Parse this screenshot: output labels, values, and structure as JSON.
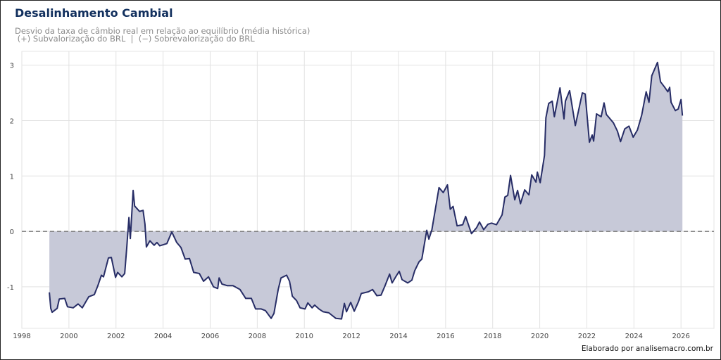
{
  "title": "Desalinhamento Cambial",
  "subtitle_line1": "Desvio da taxa de câmbio real em relação ao equilíbrio (média histórica)",
  "subtitle_line2": " (+) Subvalorização do BRL  |  (−) Sobrevalorização do BRL",
  "footer": "Elaborado por analisemacro.com.br",
  "colors": {
    "line": "#272d66",
    "fill": "#c7c9d8",
    "zero_line": "#777777",
    "title": "#12305e"
  },
  "chart_data": {
    "type": "area",
    "title": "Desalinhamento Cambial",
    "xlabel": "",
    "ylabel": "",
    "xlim": [
      1998,
      2027.4
    ],
    "ylim": [
      -1.75,
      3.25
    ],
    "x_ticks": [
      1998,
      2000,
      2002,
      2004,
      2006,
      2008,
      2010,
      2012,
      2014,
      2016,
      2018,
      2020,
      2022,
      2024,
      2026
    ],
    "y_ticks": [
      -1,
      0,
      1,
      2,
      3
    ],
    "grid": true,
    "reference_line": {
      "y": 0,
      "style": "dashed"
    },
    "points": [
      [
        1999.17,
        -1.1
      ],
      [
        1999.23,
        -1.39
      ],
      [
        1999.29,
        -1.46
      ],
      [
        1999.5,
        -1.39
      ],
      [
        1999.59,
        -1.22
      ],
      [
        1999.82,
        -1.21
      ],
      [
        1999.94,
        -1.36
      ],
      [
        2000.18,
        -1.38
      ],
      [
        2000.39,
        -1.31
      ],
      [
        2000.57,
        -1.38
      ],
      [
        2000.84,
        -1.18
      ],
      [
        2001.08,
        -1.14
      ],
      [
        2001.23,
        -0.98
      ],
      [
        2001.38,
        -0.79
      ],
      [
        2001.47,
        -0.82
      ],
      [
        2001.68,
        -0.48
      ],
      [
        2001.8,
        -0.47
      ],
      [
        2001.98,
        -0.83
      ],
      [
        2002.07,
        -0.74
      ],
      [
        2002.25,
        -0.82
      ],
      [
        2002.37,
        -0.76
      ],
      [
        2002.46,
        -0.28
      ],
      [
        2002.55,
        0.25
      ],
      [
        2002.61,
        -0.13
      ],
      [
        2002.73,
        0.74
      ],
      [
        2002.79,
        0.46
      ],
      [
        2003.0,
        0.36
      ],
      [
        2003.15,
        0.38
      ],
      [
        2003.23,
        0.13
      ],
      [
        2003.29,
        -0.28
      ],
      [
        2003.44,
        -0.17
      ],
      [
        2003.62,
        -0.25
      ],
      [
        2003.74,
        -0.2
      ],
      [
        2003.86,
        -0.26
      ],
      [
        2004.16,
        -0.22
      ],
      [
        2004.37,
        -0.01
      ],
      [
        2004.58,
        -0.2
      ],
      [
        2004.76,
        -0.29
      ],
      [
        2004.94,
        -0.5
      ],
      [
        2005.12,
        -0.49
      ],
      [
        2005.3,
        -0.74
      ],
      [
        2005.54,
        -0.76
      ],
      [
        2005.72,
        -0.9
      ],
      [
        2005.93,
        -0.82
      ],
      [
        2006.14,
        -1.0
      ],
      [
        2006.32,
        -1.03
      ],
      [
        2006.38,
        -0.84
      ],
      [
        2006.5,
        -0.95
      ],
      [
        2006.73,
        -0.98
      ],
      [
        2006.97,
        -0.98
      ],
      [
        2007.27,
        -1.05
      ],
      [
        2007.51,
        -1.21
      ],
      [
        2007.75,
        -1.21
      ],
      [
        2007.93,
        -1.4
      ],
      [
        2008.17,
        -1.4
      ],
      [
        2008.35,
        -1.43
      ],
      [
        2008.59,
        -1.57
      ],
      [
        2008.71,
        -1.48
      ],
      [
        2008.89,
        -1.05
      ],
      [
        2009.01,
        -0.84
      ],
      [
        2009.25,
        -0.79
      ],
      [
        2009.37,
        -0.9
      ],
      [
        2009.49,
        -1.17
      ],
      [
        2009.67,
        -1.25
      ],
      [
        2009.82,
        -1.38
      ],
      [
        2010.03,
        -1.4
      ],
      [
        2010.15,
        -1.29
      ],
      [
        2010.33,
        -1.38
      ],
      [
        2010.44,
        -1.33
      ],
      [
        2010.62,
        -1.4
      ],
      [
        2010.8,
        -1.45
      ],
      [
        2011.04,
        -1.47
      ],
      [
        2011.34,
        -1.57
      ],
      [
        2011.58,
        -1.58
      ],
      [
        2011.7,
        -1.3
      ],
      [
        2011.79,
        -1.45
      ],
      [
        2011.97,
        -1.28
      ],
      [
        2012.12,
        -1.44
      ],
      [
        2012.3,
        -1.27
      ],
      [
        2012.42,
        -1.12
      ],
      [
        2012.72,
        -1.09
      ],
      [
        2012.9,
        -1.05
      ],
      [
        2013.08,
        -1.16
      ],
      [
        2013.26,
        -1.15
      ],
      [
        2013.44,
        -0.97
      ],
      [
        2013.62,
        -0.77
      ],
      [
        2013.73,
        -0.93
      ],
      [
        2013.91,
        -0.8
      ],
      [
        2014.03,
        -0.72
      ],
      [
        2014.15,
        -0.87
      ],
      [
        2014.39,
        -0.93
      ],
      [
        2014.57,
        -0.88
      ],
      [
        2014.69,
        -0.71
      ],
      [
        2014.87,
        -0.55
      ],
      [
        2014.99,
        -0.5
      ],
      [
        2015.2,
        0.02
      ],
      [
        2015.29,
        -0.14
      ],
      [
        2015.42,
        0.03
      ],
      [
        2015.72,
        0.79
      ],
      [
        2015.9,
        0.7
      ],
      [
        2016.08,
        0.84
      ],
      [
        2016.2,
        0.4
      ],
      [
        2016.32,
        0.45
      ],
      [
        2016.49,
        0.1
      ],
      [
        2016.73,
        0.12
      ],
      [
        2016.85,
        0.27
      ],
      [
        2017.1,
        -0.04
      ],
      [
        2017.32,
        0.07
      ],
      [
        2017.44,
        0.17
      ],
      [
        2017.62,
        0.03
      ],
      [
        2017.8,
        0.13
      ],
      [
        2017.95,
        0.15
      ],
      [
        2018.16,
        0.12
      ],
      [
        2018.4,
        0.3
      ],
      [
        2018.52,
        0.62
      ],
      [
        2018.64,
        0.65
      ],
      [
        2018.76,
        1.01
      ],
      [
        2018.94,
        0.57
      ],
      [
        2019.06,
        0.74
      ],
      [
        2019.18,
        0.5
      ],
      [
        2019.36,
        0.75
      ],
      [
        2019.54,
        0.66
      ],
      [
        2019.66,
        1.02
      ],
      [
        2019.84,
        0.89
      ],
      [
        2019.9,
        1.07
      ],
      [
        2020.02,
        0.88
      ],
      [
        2020.2,
        1.37
      ],
      [
        2020.26,
        2.05
      ],
      [
        2020.38,
        2.31
      ],
      [
        2020.53,
        2.35
      ],
      [
        2020.62,
        2.07
      ],
      [
        2020.86,
        2.59
      ],
      [
        2021.03,
        2.03
      ],
      [
        2021.09,
        2.35
      ],
      [
        2021.27,
        2.54
      ],
      [
        2021.51,
        1.91
      ],
      [
        2021.81,
        2.5
      ],
      [
        2021.93,
        2.48
      ],
      [
        2022.11,
        1.61
      ],
      [
        2022.23,
        1.74
      ],
      [
        2022.29,
        1.63
      ],
      [
        2022.41,
        2.12
      ],
      [
        2022.61,
        2.07
      ],
      [
        2022.73,
        2.32
      ],
      [
        2022.83,
        2.11
      ],
      [
        2023.01,
        2.02
      ],
      [
        2023.13,
        1.96
      ],
      [
        2023.3,
        1.81
      ],
      [
        2023.43,
        1.62
      ],
      [
        2023.61,
        1.85
      ],
      [
        2023.79,
        1.9
      ],
      [
        2023.97,
        1.7
      ],
      [
        2024.15,
        1.83
      ],
      [
        2024.33,
        2.1
      ],
      [
        2024.52,
        2.52
      ],
      [
        2024.64,
        2.33
      ],
      [
        2024.76,
        2.81
      ],
      [
        2025.0,
        3.05
      ],
      [
        2025.13,
        2.7
      ],
      [
        2025.31,
        2.6
      ],
      [
        2025.44,
        2.52
      ],
      [
        2025.52,
        2.6
      ],
      [
        2025.58,
        2.33
      ],
      [
        2025.76,
        2.18
      ],
      [
        2025.88,
        2.21
      ],
      [
        2026.0,
        2.38
      ],
      [
        2026.06,
        2.09
      ]
    ]
  }
}
